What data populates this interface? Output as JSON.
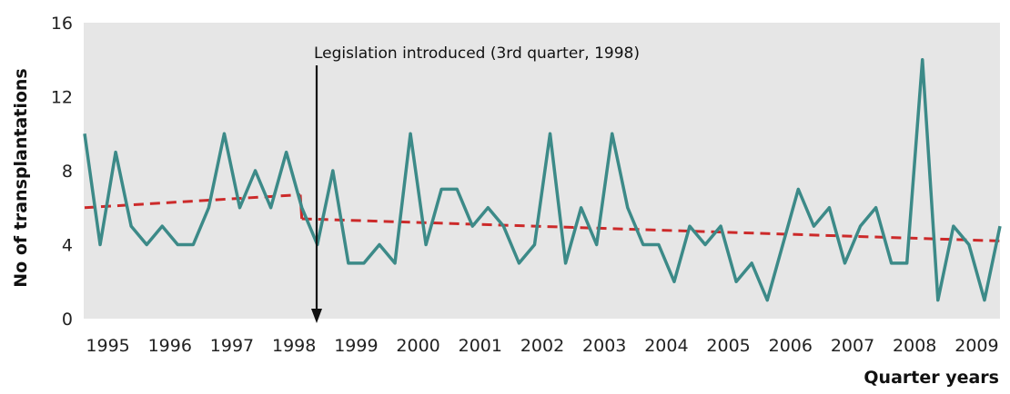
{
  "chart_data": {
    "type": "line",
    "xlabel": "Quarter years",
    "ylabel": "No of transplantations",
    "ylim": [
      0,
      16
    ],
    "yticks": [
      0,
      4,
      8,
      12,
      16
    ],
    "year_labels": [
      "1995",
      "1996",
      "1997",
      "1998",
      "1999",
      "2000",
      "2001",
      "2002",
      "2003",
      "2004",
      "2005",
      "2006",
      "2007",
      "2008",
      "2009"
    ],
    "annotation": "Legislation introduced (3rd quarter, 1998)",
    "grid": false,
    "colors": {
      "plot_bg": "#e6e6e6",
      "series": "#3c8a88",
      "trend": "#cc2a2a",
      "arrow": "#111111"
    },
    "series": [
      {
        "values": [
          10,
          4,
          9,
          5,
          4,
          5,
          4,
          4,
          6,
          10,
          6,
          8,
          6,
          9,
          6,
          4,
          8,
          3,
          3,
          4,
          3,
          10,
          4,
          7,
          7,
          5,
          6,
          5,
          3,
          4,
          10,
          3,
          6,
          4,
          10,
          6,
          4,
          4,
          2,
          5,
          4,
          5,
          2,
          3,
          1,
          4,
          7,
          5,
          6,
          3,
          5,
          6,
          3,
          3,
          14,
          1,
          5,
          4,
          1,
          5
        ]
      }
    ],
    "trend": [
      {
        "values": [
          6.0,
          6.7
        ]
      },
      {
        "values": [
          5.4,
          4.2
        ]
      }
    ]
  }
}
